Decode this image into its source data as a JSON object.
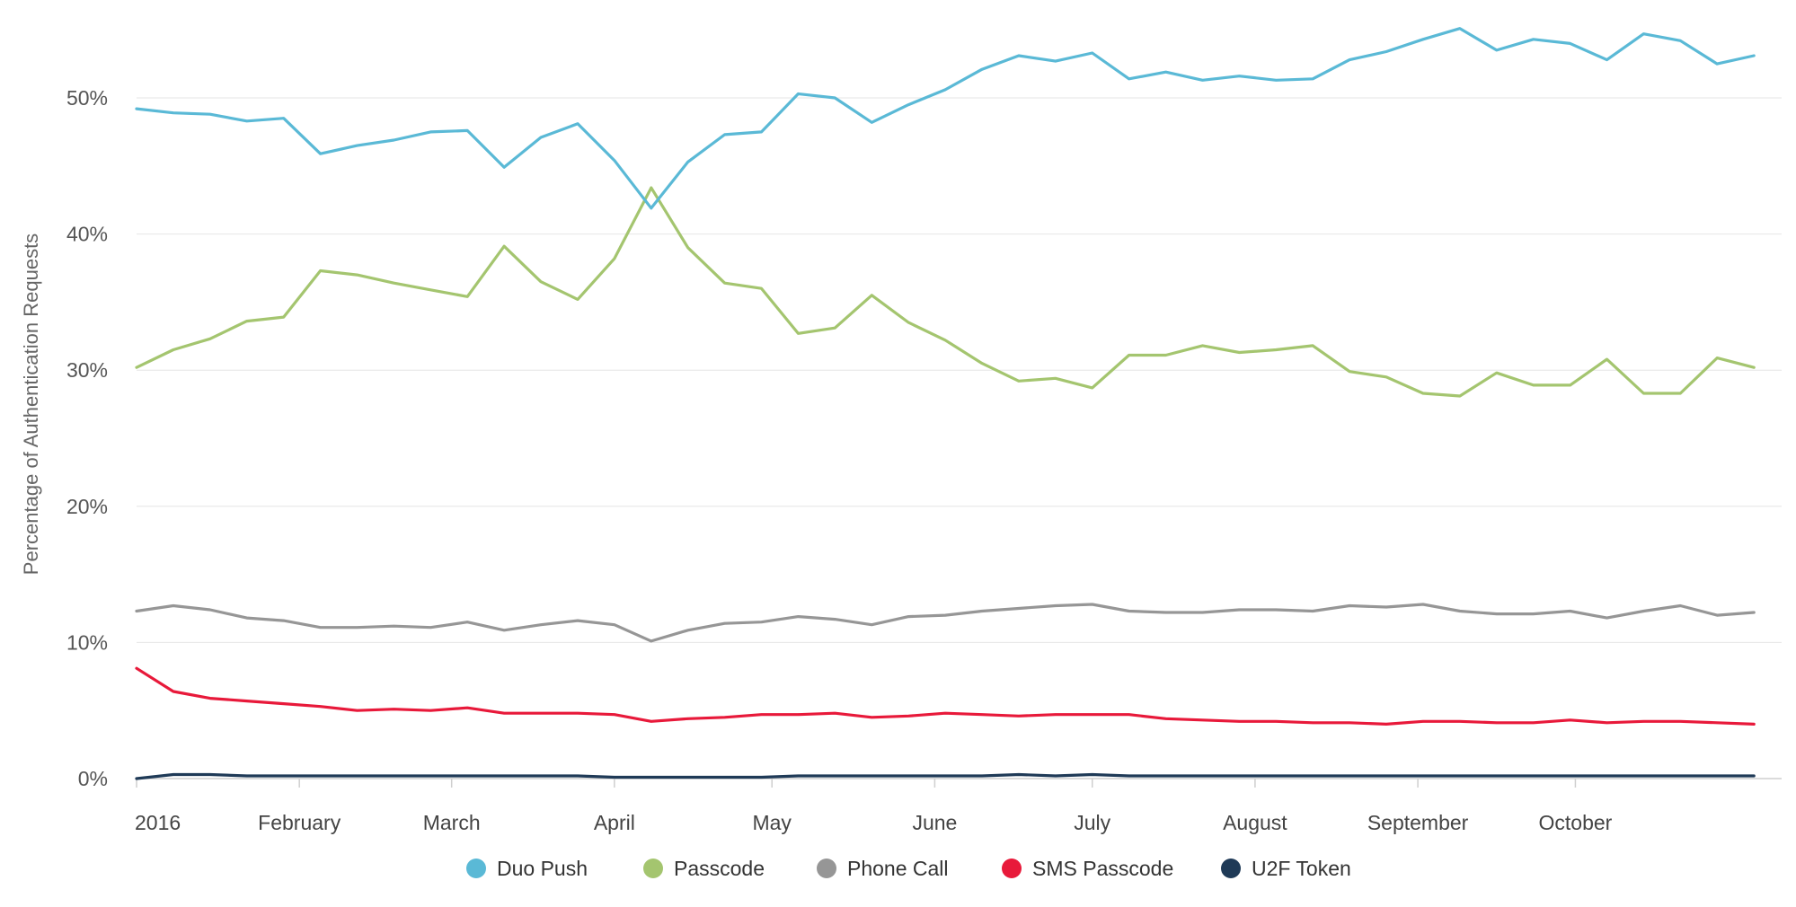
{
  "chart_data": {
    "type": "line",
    "ylabel": "Percentage of Authentication Requests",
    "ylim": [
      0,
      55
    ],
    "yticks": [
      "0%",
      "10%",
      "20%",
      "30%",
      "40%",
      "50%"
    ],
    "ytick_values": [
      0,
      10,
      20,
      30,
      40,
      50
    ],
    "xlim": [
      "2016-01-01",
      "2016-11-05"
    ],
    "xticks": [
      {
        "label": "2016",
        "date": "2016-01-01"
      },
      {
        "label": "February",
        "date": "2016-02-01"
      },
      {
        "label": "March",
        "date": "2016-03-01"
      },
      {
        "label": "April",
        "date": "2016-04-01"
      },
      {
        "label": "May",
        "date": "2016-05-01"
      },
      {
        "label": "June",
        "date": "2016-06-01"
      },
      {
        "label": "July",
        "date": "2016-07-01"
      },
      {
        "label": "August",
        "date": "2016-08-01"
      },
      {
        "label": "September",
        "date": "2016-09-01"
      },
      {
        "label": "October",
        "date": "2016-10-01"
      }
    ],
    "x": [
      "2016-01-01",
      "2016-01-08",
      "2016-01-15",
      "2016-01-22",
      "2016-01-29",
      "2016-02-05",
      "2016-02-12",
      "2016-02-19",
      "2016-02-26",
      "2016-03-04",
      "2016-03-11",
      "2016-03-18",
      "2016-03-25",
      "2016-04-01",
      "2016-04-08",
      "2016-04-15",
      "2016-04-22",
      "2016-04-29",
      "2016-05-06",
      "2016-05-13",
      "2016-05-20",
      "2016-05-27",
      "2016-06-03",
      "2016-06-10",
      "2016-06-17",
      "2016-06-24",
      "2016-07-01",
      "2016-07-08",
      "2016-07-15",
      "2016-07-22",
      "2016-07-29",
      "2016-08-05",
      "2016-08-12",
      "2016-08-19",
      "2016-08-26",
      "2016-09-02",
      "2016-09-09",
      "2016-09-16",
      "2016-09-23",
      "2016-09-30",
      "2016-10-07",
      "2016-10-14",
      "2016-10-21",
      "2016-10-28",
      "2016-11-04"
    ],
    "series": [
      {
        "name": "Duo Push",
        "color": "#5ab9d6",
        "values": [
          49.2,
          48.9,
          48.8,
          48.3,
          48.5,
          45.9,
          46.5,
          46.9,
          47.5,
          47.6,
          44.9,
          47.1,
          48.1,
          45.4,
          41.9,
          45.3,
          47.3,
          47.5,
          50.3,
          50.0,
          48.2,
          49.5,
          50.6,
          52.1,
          53.1,
          52.7,
          53.3,
          51.4,
          51.9,
          51.3,
          51.6,
          51.3,
          51.4,
          52.8,
          53.4,
          54.3,
          55.1,
          53.5,
          54.3,
          54.0,
          52.8,
          54.7,
          54.2,
          52.5,
          53.1
        ]
      },
      {
        "name": "Passcode",
        "color": "#a4c56f",
        "values": [
          30.2,
          31.5,
          32.3,
          33.6,
          33.9,
          37.3,
          37.0,
          36.4,
          35.9,
          35.4,
          39.1,
          36.5,
          35.2,
          38.2,
          43.4,
          39.0,
          36.4,
          36.0,
          32.7,
          33.1,
          35.5,
          33.5,
          32.2,
          30.5,
          29.2,
          29.4,
          28.7,
          31.1,
          31.1,
          31.8,
          31.3,
          31.5,
          31.8,
          29.9,
          29.5,
          28.3,
          28.1,
          29.8,
          28.9,
          28.9,
          30.8,
          28.3,
          28.3,
          30.9,
          30.2
        ]
      },
      {
        "name": "Phone Call",
        "color": "#969696",
        "values": [
          12.3,
          12.7,
          12.4,
          11.8,
          11.6,
          11.1,
          11.1,
          11.2,
          11.1,
          11.5,
          10.9,
          11.3,
          11.6,
          11.3,
          10.1,
          10.9,
          11.4,
          11.5,
          11.9,
          11.7,
          11.3,
          11.9,
          12.0,
          12.3,
          12.5,
          12.7,
          12.8,
          12.3,
          12.2,
          12.2,
          12.4,
          12.4,
          12.3,
          12.7,
          12.6,
          12.8,
          12.3,
          12.1,
          12.1,
          12.3,
          11.8,
          12.3,
          12.7,
          12.0,
          12.2
        ]
      },
      {
        "name": "SMS Passcode",
        "color": "#e8193a",
        "values": [
          8.1,
          6.4,
          5.9,
          5.7,
          5.5,
          5.3,
          5.0,
          5.1,
          5.0,
          5.2,
          4.8,
          4.8,
          4.8,
          4.7,
          4.2,
          4.4,
          4.5,
          4.7,
          4.7,
          4.8,
          4.5,
          4.6,
          4.8,
          4.7,
          4.6,
          4.7,
          4.7,
          4.7,
          4.4,
          4.3,
          4.2,
          4.2,
          4.1,
          4.1,
          4.0,
          4.2,
          4.2,
          4.1,
          4.1,
          4.3,
          4.1,
          4.2,
          4.2,
          4.1,
          4.0
        ]
      },
      {
        "name": "U2F Token",
        "color": "#1f3a57",
        "values": [
          0.0,
          0.3,
          0.3,
          0.2,
          0.2,
          0.2,
          0.2,
          0.2,
          0.2,
          0.2,
          0.2,
          0.2,
          0.2,
          0.1,
          0.1,
          0.1,
          0.1,
          0.1,
          0.2,
          0.2,
          0.2,
          0.2,
          0.2,
          0.2,
          0.3,
          0.2,
          0.3,
          0.2,
          0.2,
          0.2,
          0.2,
          0.2,
          0.2,
          0.2,
          0.2,
          0.2,
          0.2,
          0.2,
          0.2,
          0.2,
          0.2,
          0.2,
          0.2,
          0.2,
          0.2
        ]
      }
    ],
    "legend_position": "bottom-center",
    "grid": true
  }
}
